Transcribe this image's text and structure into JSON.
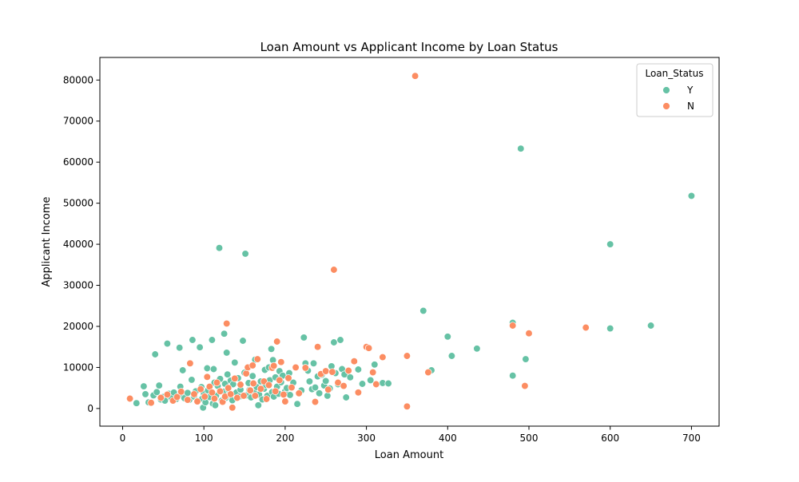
{
  "chart_data": {
    "type": "scatter",
    "title": "Loan Amount vs Applicant Income by Loan Status",
    "xlabel": "Loan Amount",
    "ylabel": "Applicant Income",
    "xlim": [
      -28,
      734
    ],
    "ylim": [
      -4300,
      85500
    ],
    "xticks": [
      0,
      100,
      200,
      300,
      400,
      500,
      600,
      700
    ],
    "yticks": [
      0,
      10000,
      20000,
      30000,
      40000,
      50000,
      60000,
      70000,
      80000
    ],
    "grid": false,
    "legend": {
      "title": "Loan_Status",
      "placement": "top-right"
    },
    "series": [
      {
        "name": "Y",
        "color": "#66c2a5",
        "points": [
          [
            17,
            1300
          ],
          [
            26,
            5400
          ],
          [
            28,
            3500
          ],
          [
            32,
            1500
          ],
          [
            38,
            3200
          ],
          [
            40,
            13200
          ],
          [
            42,
            4000
          ],
          [
            45,
            5600
          ],
          [
            47,
            2200
          ],
          [
            50,
            2800
          ],
          [
            52,
            1900
          ],
          [
            55,
            15800
          ],
          [
            57,
            3600
          ],
          [
            60,
            2600
          ],
          [
            63,
            3900
          ],
          [
            66,
            2300
          ],
          [
            70,
            14800
          ],
          [
            71,
            5300
          ],
          [
            73,
            3100
          ],
          [
            74,
            9300
          ],
          [
            76,
            2500
          ],
          [
            80,
            3800
          ],
          [
            82,
            2100
          ],
          [
            85,
            7000
          ],
          [
            86,
            16700
          ],
          [
            88,
            2900
          ],
          [
            90,
            4200
          ],
          [
            92,
            1800
          ],
          [
            95,
            14900
          ],
          [
            97,
            5200
          ],
          [
            98,
            2400
          ],
          [
            99,
            200
          ],
          [
            100,
            3600
          ],
          [
            102,
            1500
          ],
          [
            104,
            9800
          ],
          [
            105,
            4400
          ],
          [
            107,
            2800
          ],
          [
            110,
            16700
          ],
          [
            111,
            1200
          ],
          [
            112,
            9600
          ],
          [
            113,
            6300
          ],
          [
            114,
            800
          ],
          [
            115,
            3100
          ],
          [
            117,
            5500
          ],
          [
            119,
            39100
          ],
          [
            120,
            7200
          ],
          [
            122,
            1900
          ],
          [
            124,
            4100
          ],
          [
            125,
            18200
          ],
          [
            126,
            6000
          ],
          [
            127,
            2600
          ],
          [
            128,
            13600
          ],
          [
            129,
            8300
          ],
          [
            130,
            4700
          ],
          [
            132,
            3300
          ],
          [
            133,
            6800
          ],
          [
            135,
            2000
          ],
          [
            136,
            5900
          ],
          [
            138,
            11200
          ],
          [
            140,
            3900
          ],
          [
            142,
            7400
          ],
          [
            144,
            2900
          ],
          [
            145,
            4600
          ],
          [
            148,
            16500
          ],
          [
            150,
            8700
          ],
          [
            151,
            37700
          ],
          [
            152,
            3200
          ],
          [
            155,
            6200
          ],
          [
            156,
            4500
          ],
          [
            158,
            2700
          ],
          [
            160,
            7900
          ],
          [
            162,
            3800
          ],
          [
            163,
            11900
          ],
          [
            165,
            5200
          ],
          [
            167,
            800
          ],
          [
            168,
            3400
          ],
          [
            170,
            6600
          ],
          [
            172,
            2200
          ],
          [
            174,
            4800
          ],
          [
            175,
            9400
          ],
          [
            176,
            5700
          ],
          [
            178,
            3100
          ],
          [
            180,
            10000
          ],
          [
            181,
            6900
          ],
          [
            183,
            14500
          ],
          [
            184,
            4000
          ],
          [
            185,
            11800
          ],
          [
            186,
            2900
          ],
          [
            188,
            7600
          ],
          [
            190,
            5300
          ],
          [
            192,
            3600
          ],
          [
            193,
            9100
          ],
          [
            195,
            6400
          ],
          [
            197,
            8000
          ],
          [
            200,
            4200
          ],
          [
            202,
            5000
          ],
          [
            205,
            8600
          ],
          [
            206,
            3300
          ],
          [
            210,
            6300
          ],
          [
            215,
            1100
          ],
          [
            220,
            4400
          ],
          [
            223,
            17300
          ],
          [
            225,
            11000
          ],
          [
            228,
            9200
          ],
          [
            230,
            6600
          ],
          [
            233,
            4700
          ],
          [
            235,
            11000
          ],
          [
            237,
            5100
          ],
          [
            240,
            7800
          ],
          [
            242,
            3700
          ],
          [
            245,
            8200
          ],
          [
            248,
            5600
          ],
          [
            250,
            6700
          ],
          [
            252,
            3100
          ],
          [
            255,
            4900
          ],
          [
            257,
            10300
          ],
          [
            260,
            16100
          ],
          [
            262,
            8600
          ],
          [
            265,
            5900
          ],
          [
            268,
            16700
          ],
          [
            270,
            9600
          ],
          [
            273,
            8300
          ],
          [
            275,
            2700
          ],
          [
            280,
            7600
          ],
          [
            285,
            11600
          ],
          [
            290,
            9500
          ],
          [
            295,
            6000
          ],
          [
            300,
            15000
          ],
          [
            305,
            6900
          ],
          [
            310,
            10700
          ],
          [
            312,
            5900
          ],
          [
            320,
            6200
          ],
          [
            327,
            6100
          ],
          [
            370,
            23800
          ],
          [
            380,
            9300
          ],
          [
            400,
            17500
          ],
          [
            405,
            12800
          ],
          [
            436,
            14600
          ],
          [
            480,
            20900
          ],
          [
            480,
            8000
          ],
          [
            490,
            63300
          ],
          [
            496,
            12000
          ],
          [
            600,
            40000
          ],
          [
            600,
            19500
          ],
          [
            650,
            20200
          ],
          [
            700,
            51800
          ]
        ]
      },
      {
        "name": "N",
        "color": "#fc8d62",
        "points": [
          [
            9,
            2400
          ],
          [
            35,
            1400
          ],
          [
            47,
            2600
          ],
          [
            55,
            3400
          ],
          [
            62,
            1900
          ],
          [
            67,
            2800
          ],
          [
            72,
            4100
          ],
          [
            80,
            2100
          ],
          [
            83,
            11000
          ],
          [
            88,
            3500
          ],
          [
            92,
            1700
          ],
          [
            96,
            4700
          ],
          [
            101,
            2900
          ],
          [
            104,
            7700
          ],
          [
            107,
            5300
          ],
          [
            110,
            3900
          ],
          [
            113,
            2400
          ],
          [
            116,
            6300
          ],
          [
            120,
            4200
          ],
          [
            123,
            1600
          ],
          [
            126,
            2900
          ],
          [
            128,
            20700
          ],
          [
            130,
            5000
          ],
          [
            133,
            3500
          ],
          [
            135,
            200
          ],
          [
            138,
            7300
          ],
          [
            141,
            2600
          ],
          [
            145,
            5800
          ],
          [
            149,
            3100
          ],
          [
            152,
            8500
          ],
          [
            154,
            10000
          ],
          [
            157,
            4400
          ],
          [
            160,
            10500
          ],
          [
            161,
            6100
          ],
          [
            163,
            3100
          ],
          [
            166,
            12000
          ],
          [
            170,
            4800
          ],
          [
            174,
            6600
          ],
          [
            177,
            2300
          ],
          [
            180,
            5700
          ],
          [
            184,
            9900
          ],
          [
            186,
            10400
          ],
          [
            188,
            4200
          ],
          [
            190,
            16300
          ],
          [
            193,
            6900
          ],
          [
            195,
            11300
          ],
          [
            198,
            3400
          ],
          [
            200,
            1700
          ],
          [
            204,
            7400
          ],
          [
            208,
            5100
          ],
          [
            213,
            10000
          ],
          [
            217,
            3700
          ],
          [
            225,
            9900
          ],
          [
            237,
            1600
          ],
          [
            240,
            15000
          ],
          [
            244,
            8400
          ],
          [
            250,
            9100
          ],
          [
            253,
            4600
          ],
          [
            258,
            8900
          ],
          [
            260,
            33800
          ],
          [
            265,
            6300
          ],
          [
            272,
            5500
          ],
          [
            278,
            9200
          ],
          [
            285,
            11500
          ],
          [
            290,
            3900
          ],
          [
            300,
            15000
          ],
          [
            303,
            14700
          ],
          [
            308,
            8800
          ],
          [
            312,
            5900
          ],
          [
            320,
            12500
          ],
          [
            350,
            12800
          ],
          [
            350,
            500
          ],
          [
            360,
            81000
          ],
          [
            376,
            8800
          ],
          [
            480,
            20200
          ],
          [
            495,
            5500
          ],
          [
            500,
            18300
          ],
          [
            570,
            19700
          ]
        ]
      }
    ]
  }
}
